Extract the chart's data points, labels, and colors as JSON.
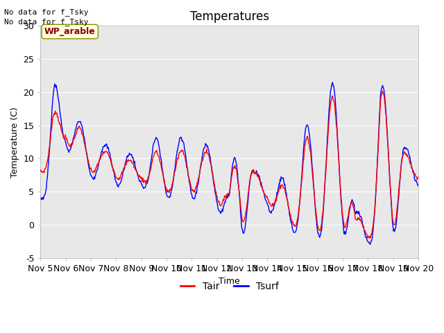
{
  "title": "Temperatures",
  "xlabel": "Time",
  "ylabel": "Temperature (C)",
  "ylim": [
    -5,
    30
  ],
  "yticks": [
    -5,
    0,
    5,
    10,
    15,
    20,
    25,
    30
  ],
  "xtick_labels": [
    "Nov 5",
    "Nov 6",
    "Nov 7",
    "Nov 8",
    "Nov 9",
    "Nov 10",
    "Nov 11",
    "Nov 12",
    "Nov 13",
    "Nov 14",
    "Nov 15",
    "Nov 16",
    "Nov 17",
    "Nov 18",
    "Nov 19",
    "Nov 20"
  ],
  "tair_color": "red",
  "tsurf_color": "blue",
  "background_color": "#e8e8e8",
  "fig_background": "#ffffff",
  "annotation_text1": "No data for f_Tsky",
  "annotation_text2": "No data for f_Tsky",
  "wp_label": "WP_arable",
  "title_fontsize": 12,
  "legend_fontsize": 10,
  "axis_fontsize": 9,
  "linewidth": 1.0
}
